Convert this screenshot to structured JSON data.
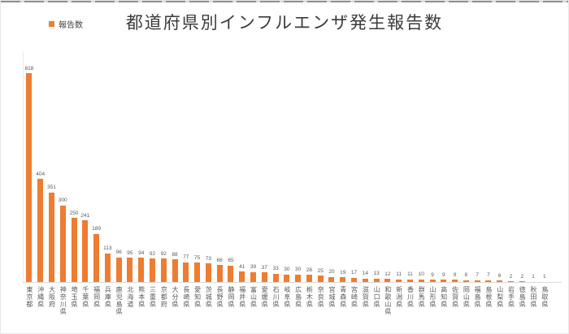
{
  "title": "都道府県別インフルエンザ発生報告数",
  "legend": {
    "label": "報告数",
    "swatch_color": "#ED7D31",
    "position": "top-left"
  },
  "colors": {
    "bar": "#ED7D31",
    "axis_line": "#D9D9D9",
    "value_label": "#595959",
    "axis_label": "#595959",
    "title_text": "#3B3B3B",
    "background": "#FFFFFF"
  },
  "chart_data": {
    "type": "bar",
    "title": "都道府県別インフルエンザ発生報告数",
    "legend_entries": [
      "報告数"
    ],
    "legend_position": "top-left",
    "grid": false,
    "value_labels_shown": true,
    "xlabel": "",
    "ylabel": "",
    "ylim": [
      0,
      870
    ],
    "categories": [
      "東京都",
      "沖縄県",
      "大阪府",
      "神奈川県",
      "埼玉県",
      "千葉県",
      "福岡県",
      "兵庫県",
      "鹿児島県",
      "北海道",
      "熊本県",
      "三重県",
      "京都府",
      "大分県",
      "長崎県",
      "愛知県",
      "茨城県",
      "長野県",
      "静岡県",
      "福井県",
      "富山県",
      "愛媛県",
      "石川県",
      "岐阜県",
      "広島県",
      "栃木県",
      "奈良県",
      "宮城県",
      "青森県",
      "宮崎県",
      "滋賀県",
      "山口県",
      "和歌山県",
      "新潟県",
      "香川県",
      "群馬県",
      "山形県",
      "高知県",
      "佐賀県",
      "岡山県",
      "福島県",
      "島根県",
      "山梨県",
      "岩手県",
      "徳島県",
      "秋田県",
      "鳥取県"
    ],
    "values": [
      818,
      404,
      351,
      300,
      250,
      241,
      189,
      113,
      96,
      95,
      94,
      92,
      92,
      88,
      77,
      75,
      73,
      66,
      65,
      41,
      39,
      37,
      33,
      30,
      30,
      28,
      25,
      20,
      19,
      17,
      14,
      13,
      12,
      11,
      11,
      10,
      9,
      9,
      9,
      8,
      7,
      7,
      6,
      2,
      2,
      1,
      1
    ]
  }
}
